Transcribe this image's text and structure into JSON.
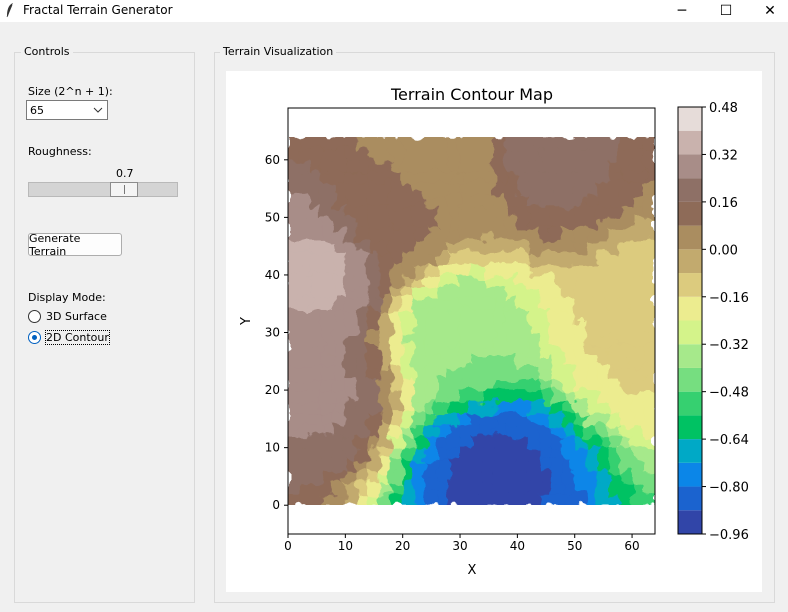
{
  "window": {
    "title": "Fractal Terrain Generator",
    "icon": "feather-icon",
    "minimize": "─",
    "maximize": "☐",
    "close": "✕"
  },
  "controls": {
    "frame_label": "Controls",
    "size_label": "Size (2^n + 1):",
    "size_value": "65",
    "roughness_label": "Roughness:",
    "roughness_value": "0.7",
    "roughness_level": 0.7,
    "generate_label": "Generate Terrain",
    "display_mode_label": "Display Mode:",
    "modes": [
      {
        "label": "3D Surface",
        "selected": false
      },
      {
        "label": "2D Contour",
        "selected": true
      }
    ]
  },
  "viz": {
    "frame_label": "Terrain Visualization"
  },
  "chart_data": {
    "type": "heatmap",
    "subtype": "filled-contour",
    "title": "Terrain Contour Map",
    "xlabel": "X",
    "ylabel": "Y",
    "xlim": [
      0,
      64
    ],
    "ylim": [
      -5,
      69
    ],
    "data_extent": [
      0,
      64
    ],
    "xticks": [
      0,
      10,
      20,
      30,
      40,
      50,
      60
    ],
    "yticks": [
      0,
      10,
      20,
      30,
      40,
      50,
      60
    ],
    "colorbar": {
      "labels": [
        "0.48",
        "0.32",
        "0.16",
        "0.00",
        "−0.16",
        "−0.32",
        "−0.48",
        "−0.64",
        "−0.80",
        "−0.96"
      ],
      "levels": [
        -0.96,
        -0.88,
        -0.8,
        -0.72,
        -0.64,
        -0.56,
        -0.48,
        -0.4,
        -0.32,
        -0.24,
        -0.16,
        -0.08,
        0.0,
        0.08,
        0.16,
        0.24,
        0.32,
        0.4,
        0.48
      ],
      "colors": [
        "#3145a8",
        "#1b63cf",
        "#0b86e8",
        "#00a9c6",
        "#00c263",
        "#36d070",
        "#76de80",
        "#a6e98b",
        "#d4f38a",
        "#ecec8f",
        "#dccb7e",
        "#c2aa6e",
        "#aa8d60",
        "#8e6b58",
        "#8e7066",
        "#a88d88",
        "#c9b2ad",
        "#e6dcd9"
      ]
    },
    "value_range": [
      -0.96,
      0.48
    ],
    "description_points": [
      {
        "x": 36,
        "y": 6,
        "z": -0.9
      },
      {
        "x": 30,
        "y": 30,
        "z": -0.4
      },
      {
        "x": 5,
        "y": 40,
        "z": 0.33
      },
      {
        "x": 5,
        "y": 20,
        "z": 0.25
      },
      {
        "x": 20,
        "y": 52,
        "z": 0.1
      },
      {
        "x": 45,
        "y": 60,
        "z": 0.18
      },
      {
        "x": 60,
        "y": 30,
        "z": -0.15
      },
      {
        "x": 28,
        "y": 58,
        "z": 0.0
      }
    ]
  }
}
